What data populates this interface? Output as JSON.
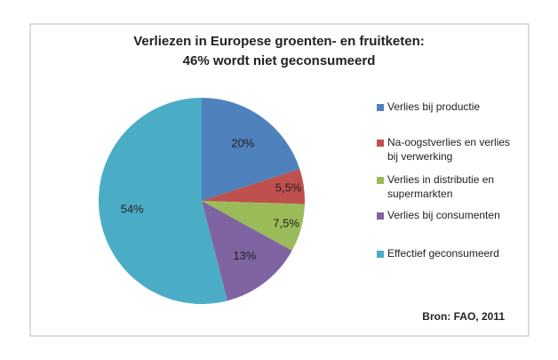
{
  "chart_data": {
    "type": "pie",
    "title": "Verliezen in Europese groenten- en fruitketen:",
    "subtitle": "46% wordt niet geconsumeerd",
    "source": "Bron: FAO, 2011",
    "categories": [
      "Verlies bij productie",
      "Na-oogstverlies en verlies bij verwerking",
      "Verlies in distributie en supermarkten",
      "Verlies bij consumenten",
      "Effectief geconsumeerd"
    ],
    "values": [
      20,
      5.5,
      7.5,
      13,
      54
    ],
    "value_labels": [
      "20%",
      "5,5%",
      "7,5%",
      "13%",
      "54%"
    ],
    "colors": [
      "#4f81bd",
      "#c0504d",
      "#9bbb59",
      "#8064a2",
      "#4bacc6"
    ],
    "legend": "right"
  }
}
